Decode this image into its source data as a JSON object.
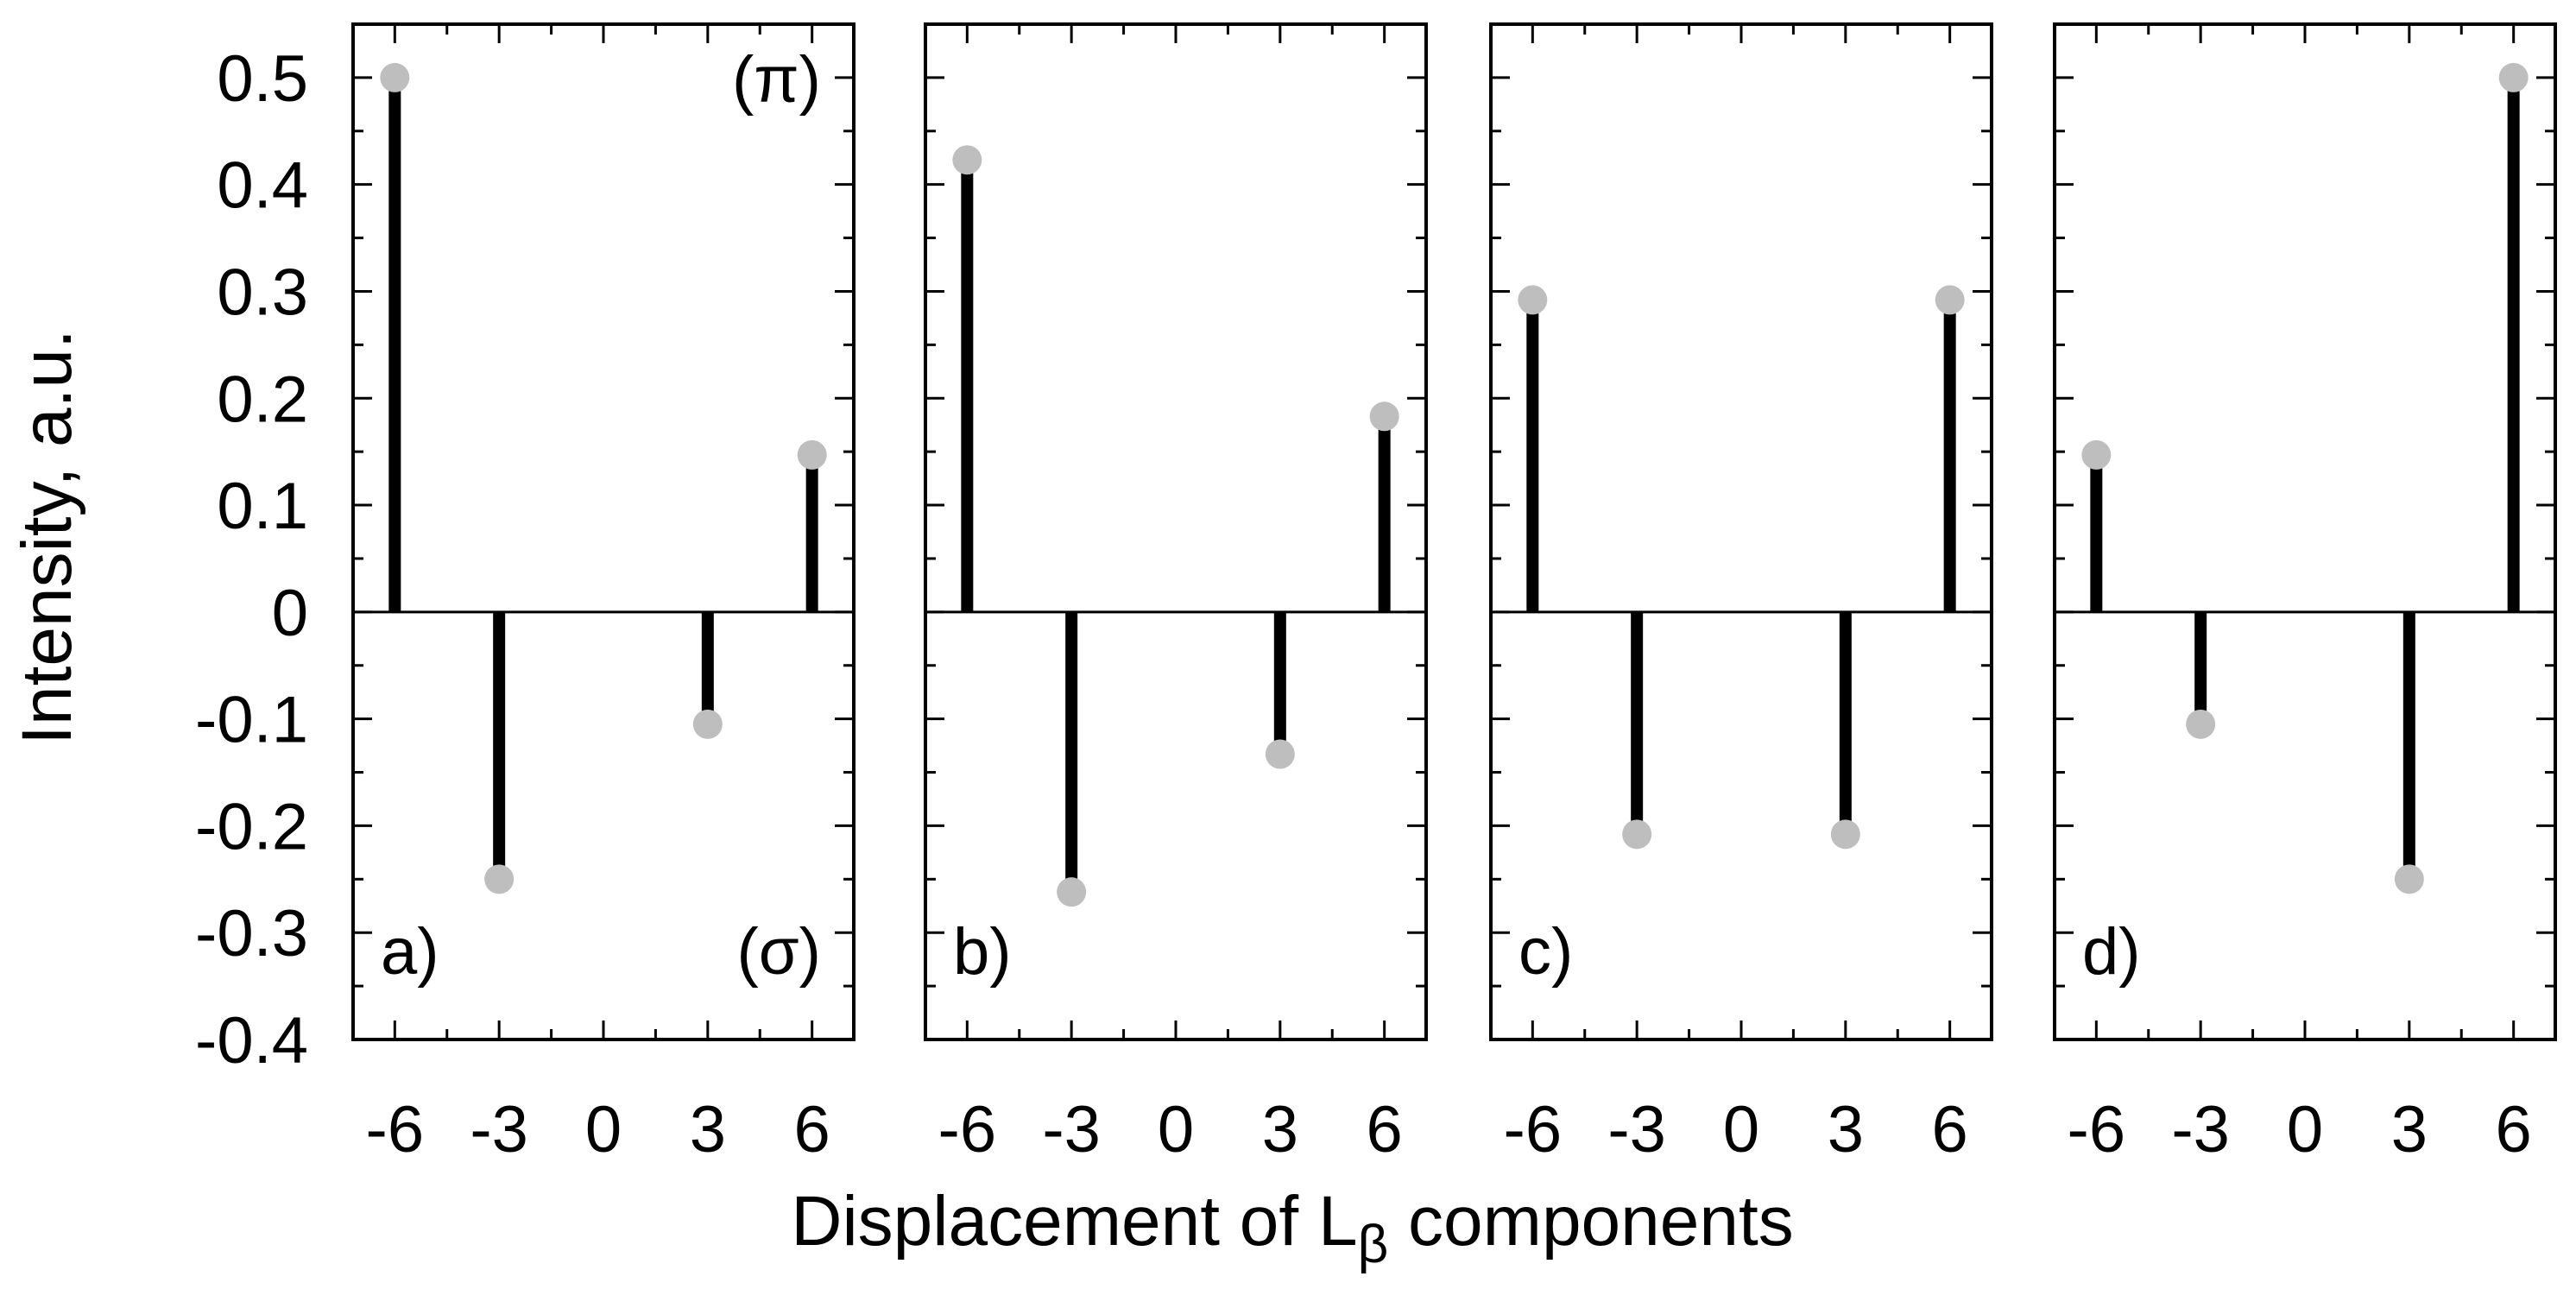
{
  "figure": {
    "ylabel": "Intensity, a.u.",
    "xlabel_main": "Displacement of L",
    "xlabel_sub": "β",
    "xlabel_tail": " components"
  },
  "chart_data": [
    {
      "type": "stem",
      "panel_label": "a)",
      "top_right_label": "(π)",
      "bottom_right_label": "(σ)",
      "x": [
        -6,
        -3,
        3,
        6
      ],
      "values": [
        0.5,
        -0.25,
        -0.105,
        0.147
      ],
      "xticks": [
        "-6",
        "-3",
        "0",
        "3",
        "6"
      ],
      "yticks": [
        "0.5",
        "0.4",
        "0.3",
        "0.2",
        "0.1",
        "0",
        "-0.1",
        "-0.2",
        "-0.3",
        "-0.4"
      ],
      "xlim": [
        -7.2,
        7.2
      ],
      "ylim": [
        -0.4,
        0.55
      ],
      "stem_color": "#000000",
      "marker_color": "#bebebe"
    },
    {
      "type": "stem",
      "panel_label": "b)",
      "x": [
        -6,
        -3,
        3,
        6
      ],
      "values": [
        0.423,
        -0.262,
        -0.133,
        0.183
      ],
      "xticks": [
        "-6",
        "-3",
        "0",
        "3",
        "6"
      ],
      "xlim": [
        -7.2,
        7.2
      ],
      "ylim": [
        -0.4,
        0.55
      ],
      "stem_color": "#000000",
      "marker_color": "#bebebe"
    },
    {
      "type": "stem",
      "panel_label": "c)",
      "x": [
        -6,
        -3,
        3,
        6
      ],
      "values": [
        0.292,
        -0.208,
        -0.208,
        0.292
      ],
      "xticks": [
        "-6",
        "-3",
        "0",
        "3",
        "6"
      ],
      "xlim": [
        -7.2,
        7.2
      ],
      "ylim": [
        -0.4,
        0.55
      ],
      "stem_color": "#000000",
      "marker_color": "#bebebe"
    },
    {
      "type": "stem",
      "panel_label": "d)",
      "x": [
        -6,
        -3,
        3,
        6
      ],
      "values": [
        0.147,
        -0.105,
        -0.25,
        0.5
      ],
      "xticks": [
        "-6",
        "-3",
        "0",
        "3",
        "6"
      ],
      "xlim": [
        -7.2,
        7.2
      ],
      "ylim": [
        -0.4,
        0.55
      ],
      "stem_color": "#000000",
      "marker_color": "#bebebe"
    }
  ]
}
